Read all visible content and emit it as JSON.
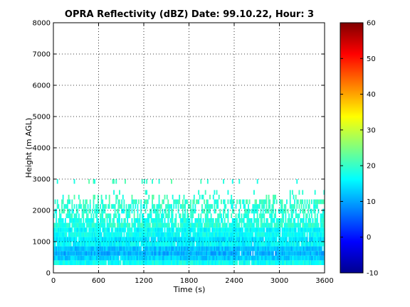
{
  "chart_data": {
    "type": "heatmap",
    "title": "OPRA Reflectivity (dBZ)  Date: 99.10.22, Hour: 3",
    "xlabel": "Time (s)",
    "ylabel": "Height (m AGL)",
    "xlim": [
      0,
      3600
    ],
    "ylim": [
      0,
      8000
    ],
    "xticks": [
      "0",
      "600",
      "1200",
      "1800",
      "2400",
      "3000",
      "3600"
    ],
    "yticks": [
      "0",
      "1000",
      "2000",
      "3000",
      "4000",
      "5000",
      "6000",
      "7000",
      "8000"
    ],
    "grid": true,
    "colorbar": {
      "label_ticks": [
        "-10",
        "0",
        "10",
        "20",
        "30",
        "40",
        "50",
        "60"
      ],
      "range": [
        -10,
        60
      ],
      "colormap": "jet"
    },
    "height_layers": [
      {
        "bottom": 250,
        "top": 400,
        "dbz": 17,
        "coverage": 0.98
      },
      {
        "bottom": 400,
        "top": 550,
        "dbz": 13,
        "coverage": 0.98
      },
      {
        "bottom": 550,
        "top": 700,
        "dbz": 11,
        "coverage": 0.98
      },
      {
        "bottom": 700,
        "top": 850,
        "dbz": 12,
        "coverage": 0.98
      },
      {
        "bottom": 850,
        "top": 1000,
        "dbz": 16,
        "coverage": 0.98
      },
      {
        "bottom": 1000,
        "top": 1150,
        "dbz": 14,
        "coverage": 0.97
      },
      {
        "bottom": 1150,
        "top": 1300,
        "dbz": 17,
        "coverage": 0.96
      },
      {
        "bottom": 1300,
        "top": 1450,
        "dbz": 16,
        "coverage": 0.95
      },
      {
        "bottom": 1450,
        "top": 1600,
        "dbz": 19,
        "coverage": 0.92
      },
      {
        "bottom": 1600,
        "top": 1750,
        "dbz": 18,
        "coverage": 0.7
      },
      {
        "bottom": 1750,
        "top": 1900,
        "dbz": 19,
        "coverage": 0.55
      },
      {
        "bottom": 1900,
        "top": 2050,
        "dbz": 19,
        "coverage": 0.55
      },
      {
        "bottom": 2050,
        "top": 2200,
        "dbz": 19,
        "coverage": 0.5
      },
      {
        "bottom": 2200,
        "top": 2350,
        "dbz": 20,
        "coverage": 0.45
      },
      {
        "bottom": 2350,
        "top": 2500,
        "dbz": 20,
        "coverage": 0.18
      },
      {
        "bottom": 2500,
        "top": 2650,
        "dbz": 20,
        "coverage": 0.06
      },
      {
        "bottom": 2850,
        "top": 3000,
        "dbz": 20,
        "coverage": 0.08
      }
    ]
  }
}
